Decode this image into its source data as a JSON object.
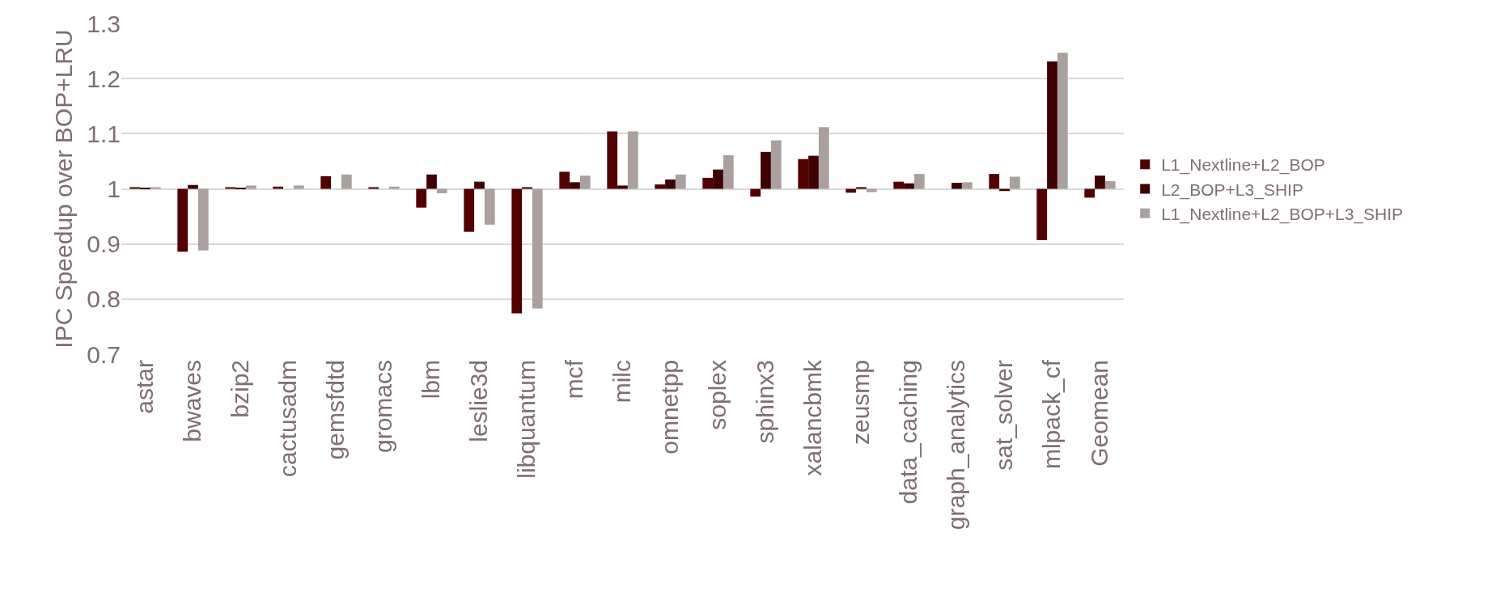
{
  "chart_data": {
    "type": "bar",
    "ylabel": "IPC Speedup over BOP+LRU",
    "categories": [
      "astar",
      "bwaves",
      "bzip2",
      "cactusadm",
      "gemsfdtd",
      "gromacs",
      "lbm",
      "leslie3d",
      "libquantum",
      "mcf",
      "milc",
      "omnetpp",
      "soplex",
      "sphinx3",
      "xalancbmk",
      "zeusmp",
      "data_caching",
      "graph_analytics",
      "sat_solver",
      "mlpack_cf",
      "Geomean"
    ],
    "series": [
      {
        "name": "L1_Nextline+L2_BOP",
        "color": "#520000",
        "base": [
          1,
          1,
          1,
          1,
          1,
          1,
          1,
          1,
          1,
          1,
          1,
          1,
          1,
          1,
          1,
          1,
          1,
          null,
          1,
          1,
          1
        ],
        "values": [
          0.003,
          -0.114,
          0.003,
          0.004,
          0.023,
          0.003,
          -0.034,
          -0.078,
          -0.226,
          0.031,
          0.104,
          0.008,
          0.02,
          -0.014,
          0.054,
          -0.007,
          0.013,
          null,
          0.027,
          -0.093,
          -0.016
        ]
      },
      {
        "name": "L2_BOP+L3_SHIP",
        "color": "#3f0000",
        "base": [
          1,
          1,
          1,
          null,
          null,
          null,
          1,
          1,
          1,
          1,
          1,
          1,
          1,
          1,
          1,
          1,
          1,
          1,
          1,
          1,
          1
        ],
        "values": [
          0.002,
          0.007,
          0.002,
          null,
          null,
          null,
          0.026,
          0.013,
          0.003,
          0.012,
          0.006,
          0.017,
          0.035,
          0.067,
          0.06,
          0.003,
          0.01,
          0.011,
          -0.004,
          0.231,
          0.024
        ]
      },
      {
        "name": "L1_Nextline+L2_BOP+L3_SHIP",
        "color": "#a9a09f",
        "base": [
          1,
          1,
          1,
          1,
          1,
          1,
          1,
          1,
          1,
          1,
          1,
          1,
          1,
          1,
          1,
          1,
          1,
          1,
          1,
          1,
          1
        ],
        "values": [
          0.003,
          -0.112,
          0.006,
          0.006,
          0.026,
          0.004,
          -0.008,
          -0.065,
          -0.217,
          0.024,
          0.104,
          0.026,
          0.061,
          0.088,
          0.112,
          -0.006,
          0.027,
          0.012,
          0.022,
          0.247,
          0.014
        ]
      }
    ],
    "ylim": [
      0.7,
      1.3
    ],
    "yticks": [
      0.7,
      0.8,
      0.9,
      1,
      1.1,
      1.2,
      1.3
    ],
    "grid": "y",
    "legend": "right"
  }
}
